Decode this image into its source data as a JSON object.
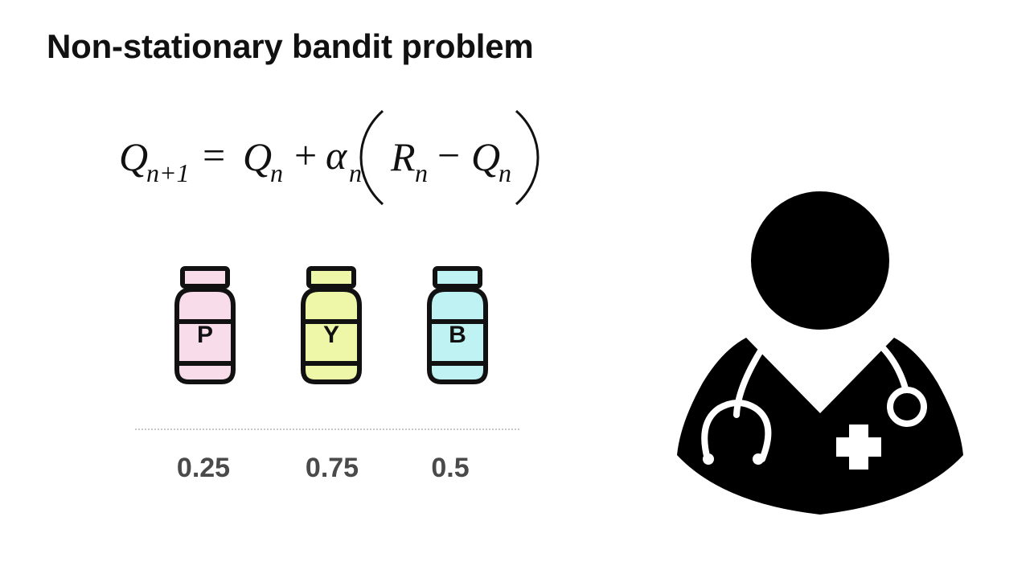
{
  "title": "Non-stationary bandit problem",
  "formula": {
    "lhs": "Q",
    "lhs_sub": "n+1",
    "eq": "=",
    "term1": "Q",
    "term1_sub": "n",
    "plus": "+",
    "alpha": "α",
    "alpha_sub": "n",
    "reward": "R",
    "reward_sub": "n",
    "minus": "−",
    "term2": "Q",
    "term2_sub": "n"
  },
  "bottles": [
    {
      "label": "P",
      "fill_color": "#f9dcea"
    },
    {
      "label": "Y",
      "fill_color": "#eef7a8"
    },
    {
      "label": "B",
      "fill_color": "#bff3f3"
    }
  ],
  "values": [
    "0.25",
    "0.75",
    "0.5"
  ],
  "doctor_icon": "doctor-with-stethoscope-icon"
}
